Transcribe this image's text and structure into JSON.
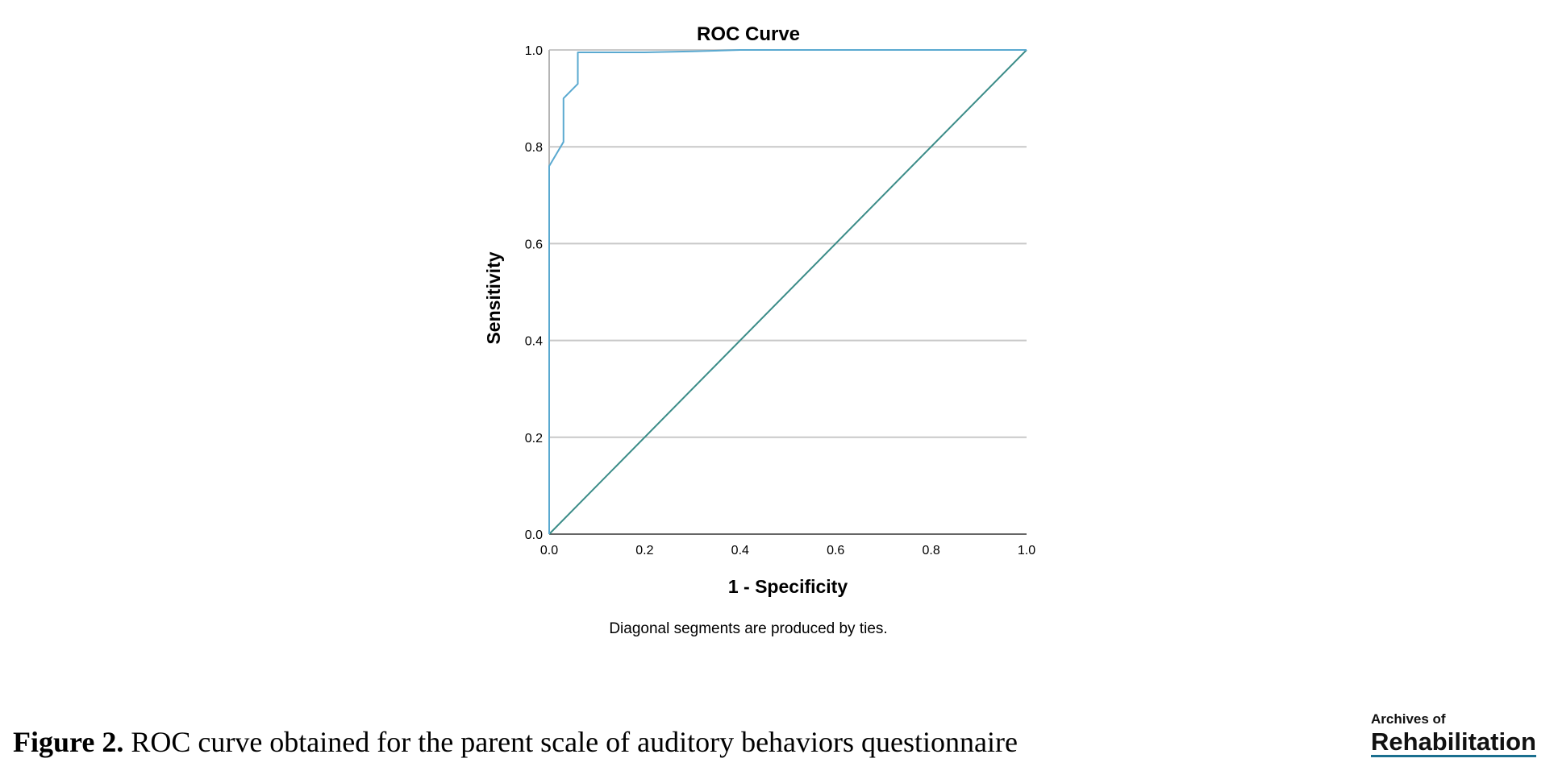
{
  "chart_data": {
    "type": "line",
    "title": "ROC Curve",
    "xlabel": "1 - Specificity",
    "ylabel": "Sensitivity",
    "xlim": [
      0,
      1
    ],
    "ylim": [
      0,
      1
    ],
    "x_ticks": [
      "0.0",
      "0.2",
      "0.4",
      "0.6",
      "0.8",
      "1.0"
    ],
    "y_ticks": [
      "0.0",
      "0.2",
      "0.4",
      "0.6",
      "0.8",
      "1.0"
    ],
    "grid": "horizontal",
    "note": "Diagonal segments are produced by ties.",
    "series": [
      {
        "color": "#5aa9d0",
        "x": [
          0.0,
          0.0,
          0.03,
          0.03,
          0.06,
          0.06,
          0.2,
          0.3,
          0.4,
          1.0
        ],
        "y": [
          0.0,
          0.76,
          0.81,
          0.9,
          0.93,
          0.995,
          0.995,
          0.997,
          1.0,
          1.0
        ]
      },
      {
        "color": "#3b8c88",
        "x": [
          0.0,
          1.0
        ],
        "y": [
          0.0,
          1.0
        ]
      }
    ]
  },
  "caption": {
    "label": "Figure 2.",
    "text": " ROC curve obtained for the parent scale of auditory behaviors questionnaire"
  },
  "logo": {
    "small": "Archives of",
    "big": "Rehabilitation"
  }
}
